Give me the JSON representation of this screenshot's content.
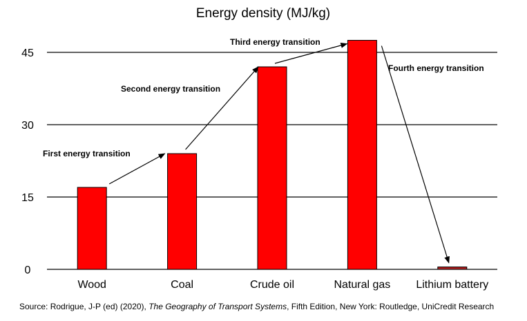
{
  "chart_data": {
    "type": "bar",
    "title": "Energy density (MJ/kg)",
    "categories": [
      "Wood",
      "Coal",
      "Crude oil",
      "Natural gas",
      "Lithium battery"
    ],
    "values": [
      17,
      24,
      42,
      47.5,
      0.5
    ],
    "ylim": [
      0,
      45
    ],
    "yticks": [
      0,
      15,
      30,
      45
    ],
    "grid": true,
    "bar_color": "#ff0000",
    "small_bar_color": "#b22222",
    "annotations": [
      {
        "text": "First energy transition",
        "from": "Wood",
        "to": "Coal"
      },
      {
        "text": "Second energy transition",
        "from": "Coal",
        "to": "Crude oil"
      },
      {
        "text": "Third energy transition",
        "from": "Crude oil",
        "to": "Natural gas"
      },
      {
        "text": "Fourth energy transition",
        "from": "Natural gas",
        "to": "Lithium battery"
      }
    ]
  },
  "source": {
    "prefix": "Source: Rodrigue, J-P (ed) (2020), ",
    "book": "The Geography of Transport Systems",
    "suffix": ", Fifth Edition, New York: Routledge, UniCredit Research"
  }
}
